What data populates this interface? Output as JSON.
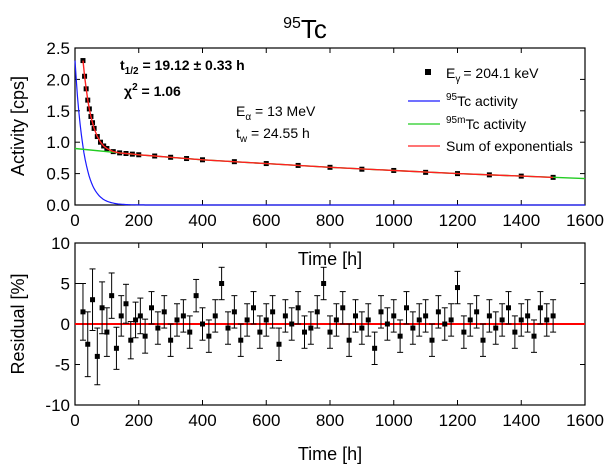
{
  "figure": {
    "title_sup": "95",
    "title_main": "Tc"
  },
  "annotations": {
    "half_life_sym": "t",
    "half_life_sub": "1/2",
    "half_life_value": " = 19.12 ± 0.33 h",
    "chi_sym": "χ",
    "chi_sup": "2",
    "chi_value": " = 1.06",
    "ealpha_sym": "E",
    "ealpha_sub": "α",
    "ealpha_value": " = 13 MeV",
    "tw_sym": "t",
    "tw_sub": "w",
    "tw_value": " = 24.55 h"
  },
  "legend": {
    "items": [
      {
        "pre": "E",
        "sub": "γ",
        "post": "= 204.1 keV",
        "sup": "",
        "marker": "square",
        "color": "#000000"
      },
      {
        "pre": "",
        "sub": "",
        "post": "Tc activity",
        "sup": "95",
        "marker": "line",
        "color": "#1a1aff"
      },
      {
        "pre": "",
        "sub": "",
        "post": "Tc activity",
        "sup": "95m",
        "marker": "line",
        "color": "#22cc22"
      },
      {
        "pre": "",
        "sub": "",
        "post": "Sum of exponentials",
        "sup": "",
        "marker": "line",
        "color": "#ff2020"
      }
    ]
  },
  "chart_data": [
    {
      "type": "scatter",
      "xlabel": "Time [h]",
      "ylabel": "Activity [cps]",
      "xlim": [
        0,
        1600
      ],
      "ylim": [
        0,
        2.5
      ],
      "xticks": [
        0,
        200,
        400,
        600,
        800,
        1000,
        1200,
        1400,
        1600
      ],
      "yticks": [
        0.0,
        0.5,
        1.0,
        1.5,
        2.0,
        2.5
      ],
      "ytick_labels": [
        "0.0",
        "0.5",
        "1.0",
        "1.5",
        "2.0",
        "2.5"
      ],
      "series": [
        {
          "name": "Eγ = 204.1 keV",
          "kind": "points",
          "color": "#000000",
          "x": [
            25,
            30,
            35,
            40,
            45,
            50,
            55,
            60,
            70,
            80,
            90,
            100,
            120,
            140,
            160,
            180,
            200,
            250,
            300,
            350,
            400,
            500,
            600,
            700,
            800,
            900,
            1000,
            1100,
            1200,
            1300,
            1400,
            1500
          ],
          "y": [
            2.3,
            2.05,
            1.85,
            1.67,
            1.53,
            1.41,
            1.31,
            1.22,
            1.09,
            1.0,
            0.94,
            0.9,
            0.85,
            0.83,
            0.82,
            0.81,
            0.8,
            0.78,
            0.76,
            0.74,
            0.72,
            0.69,
            0.66,
            0.63,
            0.6,
            0.57,
            0.55,
            0.52,
            0.5,
            0.48,
            0.46,
            0.44
          ]
        },
        {
          "name": "95Tc activity",
          "kind": "exp",
          "color": "#1a1aff",
          "A": 2.3,
          "half_life": 19.12,
          "x_from": 0,
          "x_to": 1600
        },
        {
          "name": "95mTc activity",
          "kind": "line",
          "color": "#22cc22",
          "x": [
            0,
            200,
            400,
            600,
            800,
            1000,
            1200,
            1400,
            1600
          ],
          "y": [
            0.9,
            0.8,
            0.72,
            0.66,
            0.6,
            0.55,
            0.5,
            0.46,
            0.42
          ]
        },
        {
          "name": "Sum of exponentials",
          "kind": "line",
          "color": "#ff2020",
          "x": [
            25,
            30,
            35,
            40,
            45,
            50,
            55,
            60,
            70,
            80,
            90,
            100,
            120,
            140,
            160,
            180,
            200,
            250,
            300,
            400,
            600,
            800,
            1000,
            1200,
            1400,
            1500
          ],
          "y": [
            2.3,
            2.05,
            1.85,
            1.67,
            1.53,
            1.41,
            1.31,
            1.22,
            1.09,
            1.0,
            0.94,
            0.9,
            0.85,
            0.83,
            0.82,
            0.81,
            0.8,
            0.78,
            0.76,
            0.72,
            0.66,
            0.6,
            0.55,
            0.5,
            0.46,
            0.44
          ]
        }
      ]
    },
    {
      "type": "scatter",
      "xlabel": "Time [h]",
      "ylabel": "Residual [%]",
      "xlim": [
        0,
        1600
      ],
      "ylim": [
        -10,
        10
      ],
      "xticks": [
        0,
        200,
        400,
        600,
        800,
        1000,
        1200,
        1400,
        1600
      ],
      "yticks": [
        -10,
        -5,
        0,
        5,
        10
      ],
      "zero_line_color": "#ff0000",
      "series": [
        {
          "name": "Residual",
          "kind": "points_err",
          "color": "#000000",
          "x": [
            25,
            40,
            55,
            70,
            85,
            100,
            115,
            130,
            145,
            160,
            175,
            190,
            205,
            220,
            240,
            260,
            280,
            300,
            320,
            340,
            360,
            380,
            400,
            420,
            440,
            460,
            480,
            500,
            520,
            540,
            560,
            580,
            600,
            620,
            640,
            660,
            680,
            700,
            720,
            740,
            760,
            780,
            800,
            820,
            840,
            860,
            880,
            900,
            920,
            940,
            960,
            980,
            1000,
            1020,
            1040,
            1060,
            1080,
            1100,
            1120,
            1140,
            1160,
            1180,
            1200,
            1220,
            1240,
            1260,
            1280,
            1300,
            1320,
            1340,
            1360,
            1380,
            1400,
            1420,
            1440,
            1460,
            1480,
            1500
          ],
          "y": [
            1.5,
            -2.5,
            3.0,
            -4.0,
            2.0,
            -1.0,
            3.5,
            -3.0,
            1.0,
            2.5,
            -2.0,
            0.5,
            1.0,
            -1.5,
            2.0,
            -0.5,
            1.5,
            -2.0,
            0.5,
            1.0,
            -1.0,
            3.5,
            0.0,
            -1.5,
            1.0,
            5.0,
            -0.5,
            1.5,
            -2.0,
            0.5,
            2.0,
            -1.0,
            0.5,
            1.5,
            -2.5,
            1.0,
            0.0,
            2.0,
            -1.0,
            -0.5,
            1.5,
            5.0,
            -1.0,
            0.5,
            2.0,
            -2.0,
            1.0,
            -0.5,
            0.5,
            -3.0,
            1.5,
            0.0,
            1.0,
            -1.5,
            2.0,
            -0.5,
            0.5,
            1.0,
            -2.0,
            1.5,
            0.0,
            0.5,
            4.5,
            -1.0,
            0.5,
            1.5,
            -2.0,
            1.0,
            -0.5,
            0.5,
            2.0,
            -1.0,
            0.5,
            1.0,
            -1.5,
            2.0,
            0.5,
            1.0
          ],
          "err": [
            3.5,
            4.0,
            3.8,
            3.5,
            3.2,
            3.0,
            2.8,
            2.6,
            2.5,
            2.4,
            2.3,
            2.2,
            2.2,
            2.1,
            2.0,
            2.0,
            2.0,
            2.0,
            2.0,
            2.0,
            2.0,
            2.0,
            2.0,
            2.0,
            2.0,
            2.0,
            2.0,
            2.0,
            2.0,
            2.0,
            2.0,
            2.0,
            2.0,
            2.0,
            2.0,
            2.0,
            2.0,
            2.0,
            2.0,
            2.0,
            2.0,
            2.0,
            2.0,
            2.0,
            2.0,
            2.0,
            2.0,
            2.0,
            2.0,
            2.0,
            2.0,
            2.0,
            2.0,
            2.0,
            2.0,
            2.0,
            2.0,
            2.0,
            2.0,
            2.0,
            2.0,
            2.0,
            2.0,
            2.0,
            2.0,
            2.0,
            2.0,
            2.0,
            2.0,
            2.0,
            2.0,
            2.0,
            2.0,
            2.0,
            2.0,
            2.0,
            2.0,
            2.0
          ]
        }
      ]
    }
  ]
}
